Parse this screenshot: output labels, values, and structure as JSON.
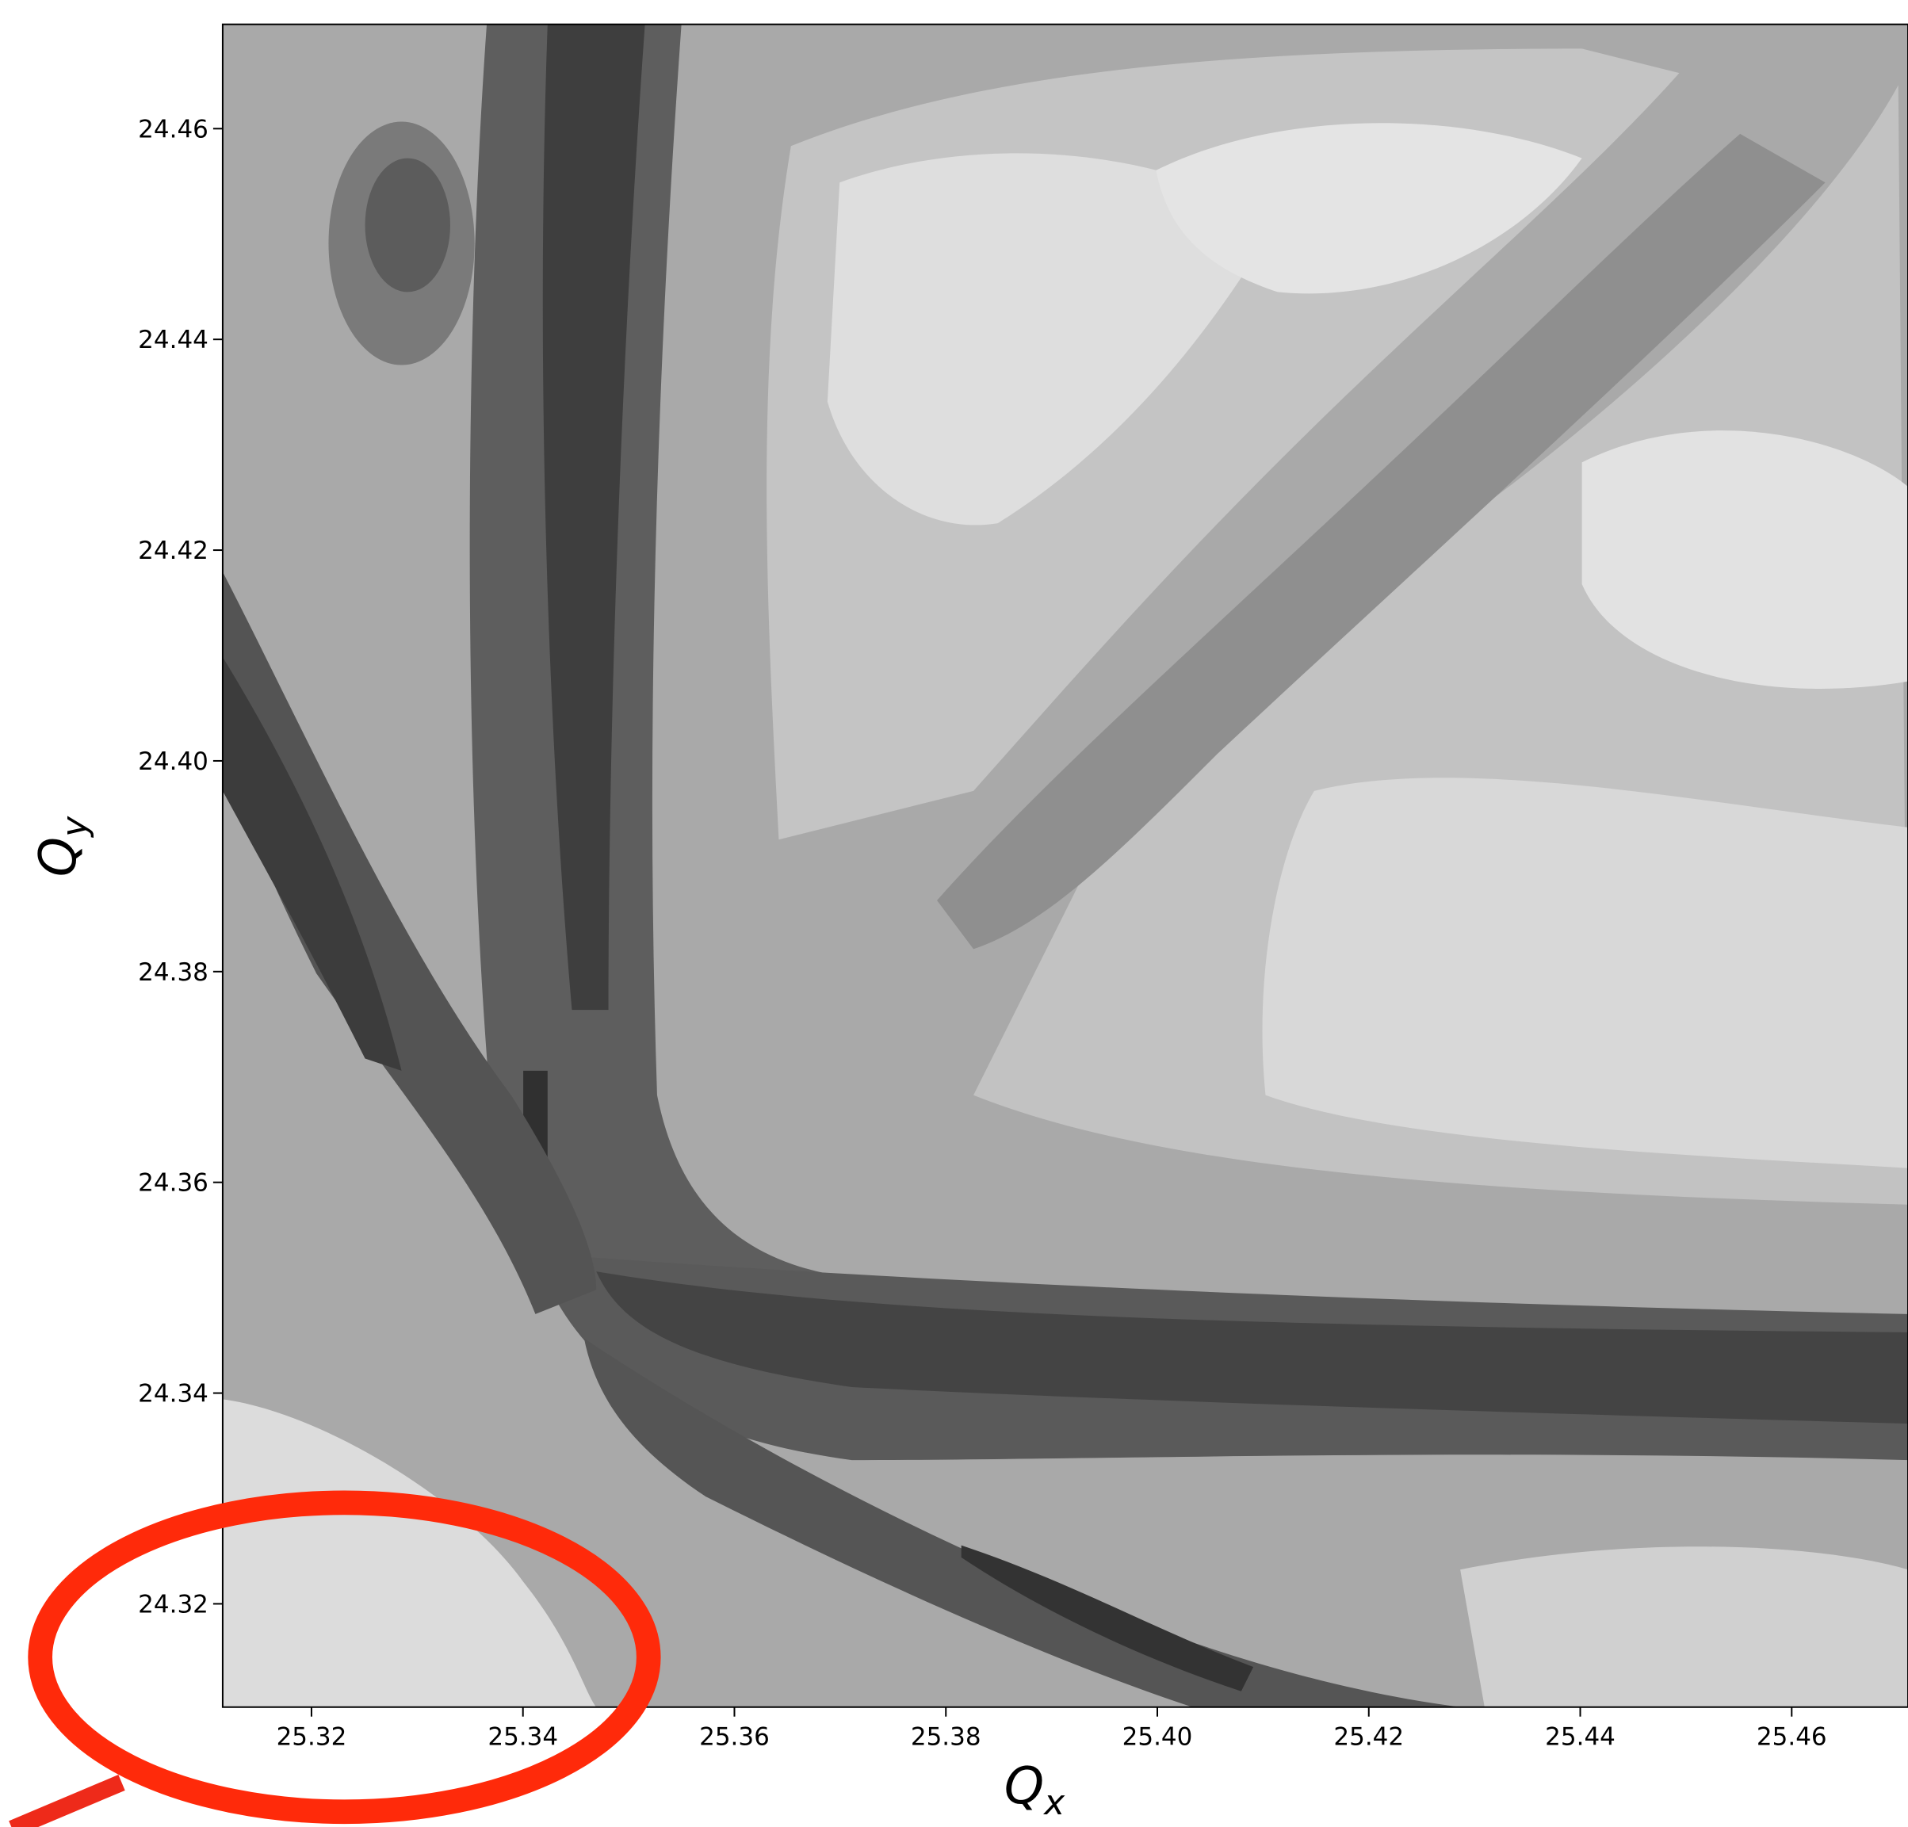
{
  "chart_data": {
    "type": "contour",
    "x_label": [
      "Q",
      "x"
    ],
    "y_label": [
      "Q",
      "y"
    ],
    "xlim": [
      25.3116,
      25.471
    ],
    "ylim": [
      24.3102,
      24.4699
    ],
    "xticks": [
      25.32,
      25.34,
      25.36,
      25.38,
      {
        "value": 25.4,
        "label": "25.40"
      },
      25.42,
      25.44,
      25.46
    ],
    "yticks": [
      24.32,
      24.34,
      24.36,
      24.38,
      {
        "value": 24.4,
        "label": "24.40"
      },
      24.42,
      24.44,
      24.46
    ],
    "colormap": "gray"
  }
}
